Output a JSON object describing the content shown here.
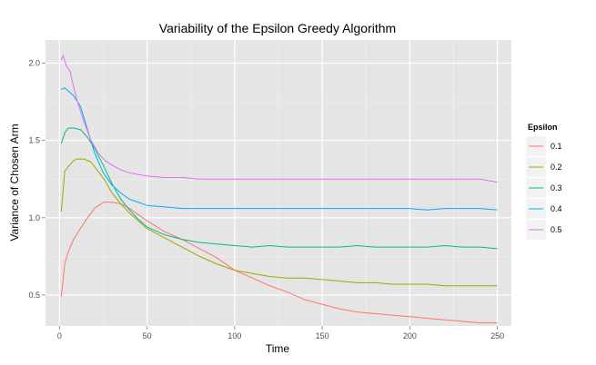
{
  "chart_data": {
    "type": "line",
    "title": "Variability of the Epsilon Greedy Algorithm",
    "xlabel": "Time",
    "ylabel": "Variance of Chosen Arm",
    "xlim": [
      -8,
      258
    ],
    "ylim": [
      0.3,
      2.15
    ],
    "x_ticks": [
      0,
      50,
      100,
      150,
      200,
      250
    ],
    "y_ticks": [
      0.5,
      1.0,
      1.5,
      2.0
    ],
    "y_tick_labels": [
      "0.5",
      "1.0",
      "1.5",
      "2.0"
    ],
    "grid": true,
    "legend": {
      "title": "Epsilon",
      "placement": "right"
    },
    "series": [
      {
        "name": "0.1",
        "color": "#F8766D",
        "points": [
          [
            1,
            0.49
          ],
          [
            3,
            0.7
          ],
          [
            5,
            0.78
          ],
          [
            8,
            0.86
          ],
          [
            12,
            0.93
          ],
          [
            16,
            1.0
          ],
          [
            20,
            1.06
          ],
          [
            25,
            1.1
          ],
          [
            30,
            1.1
          ],
          [
            35,
            1.09
          ],
          [
            40,
            1.06
          ],
          [
            45,
            1.02
          ],
          [
            50,
            0.98
          ],
          [
            60,
            0.91
          ],
          [
            70,
            0.86
          ],
          [
            80,
            0.8
          ],
          [
            90,
            0.74
          ],
          [
            100,
            0.66
          ],
          [
            110,
            0.61
          ],
          [
            120,
            0.56
          ],
          [
            130,
            0.52
          ],
          [
            140,
            0.47
          ],
          [
            150,
            0.44
          ],
          [
            160,
            0.41
          ],
          [
            170,
            0.39
          ],
          [
            180,
            0.38
          ],
          [
            190,
            0.37
          ],
          [
            200,
            0.36
          ],
          [
            210,
            0.35
          ],
          [
            220,
            0.34
          ],
          [
            230,
            0.33
          ],
          [
            240,
            0.32
          ],
          [
            250,
            0.32
          ]
        ]
      },
      {
        "name": "0.2",
        "color": "#A3A500",
        "points": [
          [
            1,
            1.04
          ],
          [
            3,
            1.3
          ],
          [
            5,
            1.33
          ],
          [
            8,
            1.37
          ],
          [
            10,
            1.38
          ],
          [
            14,
            1.38
          ],
          [
            18,
            1.36
          ],
          [
            22,
            1.3
          ],
          [
            26,
            1.24
          ],
          [
            30,
            1.16
          ],
          [
            35,
            1.09
          ],
          [
            40,
            1.03
          ],
          [
            45,
            0.98
          ],
          [
            50,
            0.93
          ],
          [
            60,
            0.87
          ],
          [
            70,
            0.81
          ],
          [
            80,
            0.75
          ],
          [
            90,
            0.7
          ],
          [
            100,
            0.66
          ],
          [
            110,
            0.64
          ],
          [
            120,
            0.62
          ],
          [
            130,
            0.61
          ],
          [
            140,
            0.61
          ],
          [
            150,
            0.6
          ],
          [
            160,
            0.59
          ],
          [
            170,
            0.58
          ],
          [
            180,
            0.58
          ],
          [
            190,
            0.57
          ],
          [
            200,
            0.57
          ],
          [
            210,
            0.57
          ],
          [
            220,
            0.56
          ],
          [
            230,
            0.56
          ],
          [
            240,
            0.56
          ],
          [
            250,
            0.56
          ]
        ]
      },
      {
        "name": "0.3",
        "color": "#00BF7D",
        "points": [
          [
            1,
            1.48
          ],
          [
            3,
            1.55
          ],
          [
            5,
            1.58
          ],
          [
            8,
            1.58
          ],
          [
            12,
            1.57
          ],
          [
            16,
            1.52
          ],
          [
            20,
            1.45
          ],
          [
            25,
            1.34
          ],
          [
            30,
            1.22
          ],
          [
            35,
            1.12
          ],
          [
            40,
            1.05
          ],
          [
            45,
            0.99
          ],
          [
            50,
            0.94
          ],
          [
            60,
            0.89
          ],
          [
            70,
            0.86
          ],
          [
            80,
            0.84
          ],
          [
            90,
            0.83
          ],
          [
            100,
            0.82
          ],
          [
            110,
            0.81
          ],
          [
            120,
            0.82
          ],
          [
            130,
            0.81
          ],
          [
            140,
            0.81
          ],
          [
            150,
            0.81
          ],
          [
            160,
            0.81
          ],
          [
            170,
            0.82
          ],
          [
            180,
            0.81
          ],
          [
            190,
            0.81
          ],
          [
            200,
            0.81
          ],
          [
            210,
            0.81
          ],
          [
            220,
            0.82
          ],
          [
            230,
            0.81
          ],
          [
            240,
            0.81
          ],
          [
            250,
            0.8
          ]
        ]
      },
      {
        "name": "0.4",
        "color": "#00B0F6",
        "points": [
          [
            1,
            1.83
          ],
          [
            3,
            1.84
          ],
          [
            5,
            1.82
          ],
          [
            8,
            1.79
          ],
          [
            12,
            1.72
          ],
          [
            16,
            1.57
          ],
          [
            20,
            1.42
          ],
          [
            25,
            1.29
          ],
          [
            30,
            1.21
          ],
          [
            35,
            1.16
          ],
          [
            40,
            1.12
          ],
          [
            45,
            1.1
          ],
          [
            50,
            1.08
          ],
          [
            60,
            1.07
          ],
          [
            70,
            1.06
          ],
          [
            80,
            1.06
          ],
          [
            90,
            1.06
          ],
          [
            100,
            1.06
          ],
          [
            110,
            1.06
          ],
          [
            120,
            1.06
          ],
          [
            130,
            1.06
          ],
          [
            140,
            1.06
          ],
          [
            150,
            1.06
          ],
          [
            160,
            1.06
          ],
          [
            170,
            1.06
          ],
          [
            180,
            1.06
          ],
          [
            190,
            1.06
          ],
          [
            200,
            1.06
          ],
          [
            210,
            1.05
          ],
          [
            220,
            1.06
          ],
          [
            230,
            1.06
          ],
          [
            240,
            1.06
          ],
          [
            250,
            1.05
          ]
        ]
      },
      {
        "name": "0.5",
        "color": "#E76BF3",
        "points": [
          [
            1,
            2.02
          ],
          [
            2,
            2.05
          ],
          [
            4,
            1.98
          ],
          [
            6,
            1.95
          ],
          [
            8,
            1.85
          ],
          [
            10,
            1.76
          ],
          [
            14,
            1.62
          ],
          [
            18,
            1.5
          ],
          [
            22,
            1.42
          ],
          [
            26,
            1.37
          ],
          [
            30,
            1.34
          ],
          [
            35,
            1.31
          ],
          [
            40,
            1.29
          ],
          [
            45,
            1.28
          ],
          [
            50,
            1.27
          ],
          [
            60,
            1.26
          ],
          [
            70,
            1.26
          ],
          [
            80,
            1.25
          ],
          [
            90,
            1.25
          ],
          [
            100,
            1.25
          ],
          [
            110,
            1.25
          ],
          [
            120,
            1.25
          ],
          [
            130,
            1.25
          ],
          [
            140,
            1.25
          ],
          [
            150,
            1.25
          ],
          [
            160,
            1.25
          ],
          [
            170,
            1.25
          ],
          [
            180,
            1.25
          ],
          [
            190,
            1.25
          ],
          [
            200,
            1.25
          ],
          [
            210,
            1.25
          ],
          [
            220,
            1.25
          ],
          [
            230,
            1.25
          ],
          [
            240,
            1.25
          ],
          [
            250,
            1.23
          ]
        ]
      }
    ]
  }
}
